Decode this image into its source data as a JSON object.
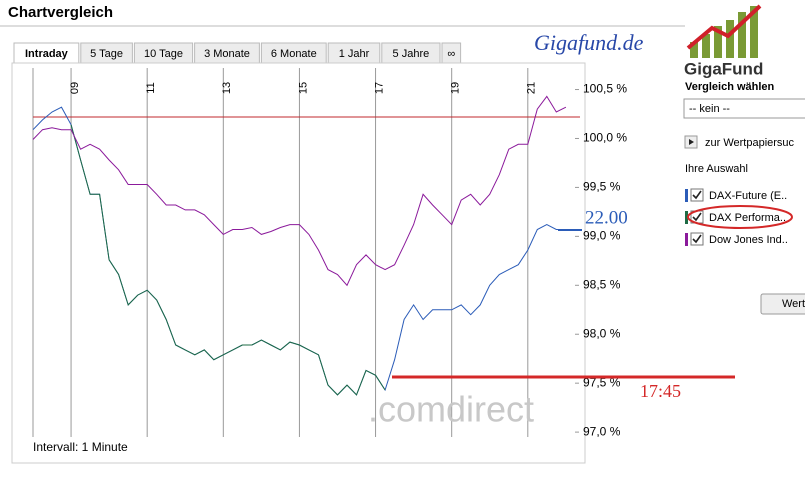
{
  "header": {
    "title": "Chartvergleich"
  },
  "tabs": [
    "Intraday",
    "5 Tage",
    "10 Tage",
    "3 Monate",
    "6 Monate",
    "1 Jahr",
    "5 Jahre",
    "∞"
  ],
  "sidebar": {
    "title": "Vergleich wählen",
    "select": "-- kein --",
    "search": "zur Wertpapiersuc",
    "selection_title": "Ihre Auswahl",
    "button": "Wert"
  },
  "branding": {
    "site": "Gigafund.de",
    "logo": "GigaFund",
    "watermark": ".comdirect"
  },
  "footer": "Intervall: 1 Minute",
  "chart_data": {
    "type": "line",
    "x": [
      8.0,
      8.25,
      8.5,
      8.75,
      9.0,
      9.25,
      9.5,
      9.75,
      10.0,
      10.25,
      10.5,
      10.75,
      11.0,
      11.25,
      11.5,
      11.75,
      12.0,
      12.25,
      12.5,
      12.75,
      13.0,
      13.25,
      13.5,
      13.75,
      14.0,
      14.25,
      14.5,
      14.75,
      15.0,
      15.25,
      15.5,
      15.75,
      16.0,
      16.25,
      16.5,
      16.75,
      17.0,
      17.25,
      17.5,
      17.75,
      18.0,
      18.25,
      18.5,
      18.75,
      19.0,
      19.25,
      19.5,
      19.75,
      20.0,
      20.25,
      20.5,
      20.75,
      21.0,
      21.25,
      21.5,
      21.75,
      22.0
    ],
    "series": [
      {
        "name": "DAX-Future (E..",
        "color": "#2b5cb8",
        "values": [
          100.09,
          100.19,
          100.27,
          100.32,
          100.14,
          99.78,
          99.43,
          99.43,
          98.76,
          98.61,
          98.3,
          98.4,
          98.45,
          98.35,
          98.15,
          97.89,
          97.84,
          97.79,
          97.84,
          97.74,
          97.79,
          97.84,
          97.89,
          97.89,
          97.94,
          97.89,
          97.84,
          97.92,
          97.89,
          97.84,
          97.79,
          97.48,
          97.38,
          97.48,
          97.38,
          97.63,
          97.58,
          97.43,
          97.74,
          98.15,
          98.3,
          98.15,
          98.25,
          98.25,
          98.25,
          98.3,
          98.2,
          98.3,
          98.5,
          98.61,
          98.66,
          98.71,
          98.86,
          99.07,
          99.12,
          99.07,
          99.07
        ]
      },
      {
        "name": "DAX Performa..",
        "color": "#1e6b45",
        "values": [
          null,
          null,
          null,
          null,
          100.14,
          99.78,
          99.43,
          99.43,
          98.76,
          98.61,
          98.3,
          98.4,
          98.45,
          98.35,
          98.15,
          97.89,
          97.84,
          97.79,
          97.84,
          97.74,
          97.79,
          97.84,
          97.89,
          97.89,
          97.94,
          97.89,
          97.84,
          97.92,
          97.89,
          97.84,
          97.79,
          97.48,
          97.38,
          97.48,
          97.38,
          97.63,
          97.58,
          97.43,
          null,
          null,
          null,
          null,
          null,
          null,
          null,
          null,
          null,
          null,
          null,
          null,
          null,
          null,
          null,
          null,
          null,
          null,
          null
        ]
      },
      {
        "name": "Dow Jones Ind..",
        "color": "#8b1a9b",
        "values": [
          99.99,
          100.09,
          100.11,
          100.09,
          100.09,
          99.89,
          99.94,
          99.89,
          99.78,
          99.68,
          99.53,
          99.53,
          99.53,
          99.43,
          99.32,
          99.32,
          99.27,
          99.27,
          99.22,
          99.12,
          99.02,
          99.07,
          99.07,
          99.09,
          99.02,
          99.05,
          99.09,
          99.12,
          99.12,
          99.02,
          98.86,
          98.66,
          98.61,
          98.5,
          98.71,
          98.81,
          98.71,
          98.66,
          98.71,
          98.91,
          99.12,
          99.43,
          99.32,
          99.22,
          99.12,
          99.37,
          99.43,
          99.32,
          99.43,
          99.63,
          99.89,
          99.94,
          99.94,
          100.3,
          100.43,
          100.27,
          100.32
        ]
      }
    ],
    "reference_value": 100.22,
    "reference_color": "#c0282d",
    "xlim": [
      8.0,
      22.24
    ],
    "xticks": [
      {
        "value": 9,
        "label": "09"
      },
      11,
      13,
      15,
      17,
      19,
      21
    ],
    "ylim": [
      96.95,
      100.72
    ],
    "yticks": [
      {
        "value": 97.0,
        "label": "97,0 %"
      },
      {
        "value": 97.5,
        "label": "97,5 %"
      },
      {
        "value": 98.0,
        "label": "98,0 %"
      },
      {
        "value": 98.5,
        "label": "98,5 %"
      },
      {
        "value": 99.0,
        "label": "99,0 %"
      },
      {
        "value": 99.5,
        "label": "99,5 %"
      },
      {
        "value": 100.0,
        "label": "100,0 %"
      },
      {
        "value": 100.5,
        "label": "100,5 %"
      }
    ],
    "grid": "x",
    "annotations": [
      "22.00",
      "17:45"
    ]
  }
}
